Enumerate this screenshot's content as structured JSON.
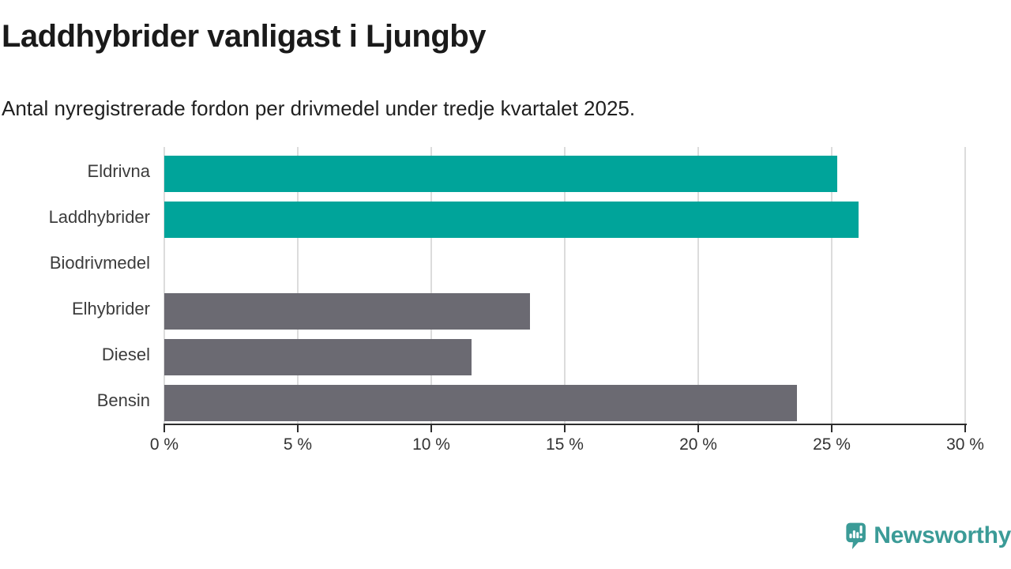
{
  "title": "Laddhybrider vanligast i Ljungby",
  "subtitle": "Antal nyregistrerade fordon per drivmedel under tredje kvartalet 2025.",
  "chart_data": {
    "type": "bar",
    "orientation": "horizontal",
    "categories": [
      "Eldrivna",
      "Laddhybrider",
      "Biodrivmedel",
      "Elhybrider",
      "Diesel",
      "Bensin"
    ],
    "values": [
      25.2,
      26.0,
      0,
      13.7,
      11.5,
      23.7
    ],
    "unit": "%",
    "title": "Laddhybrider vanligast i Ljungby",
    "xlabel": "",
    "ylabel": "",
    "xlim": [
      0,
      30
    ],
    "x_tick_values": [
      0,
      5,
      10,
      15,
      20,
      25,
      30
    ],
    "x_tick_labels": [
      "0 %",
      "5 %",
      "10 %",
      "15 %",
      "20 %",
      "25 %",
      "30 %"
    ],
    "grid": true,
    "legend": "none",
    "bar_colors": [
      "#00a49a",
      "#00a49a",
      "#6b6a72",
      "#6b6a72",
      "#6b6a72",
      "#6b6a72"
    ],
    "highlight_color": "#00a49a",
    "default_color": "#6b6a72",
    "gridline_color": "#dcdcdc",
    "axis_color": "#2d2d2d"
  },
  "branding": {
    "name": "Newsworthy",
    "color": "#3b9b97",
    "icon": "newsworthy-logo-icon"
  }
}
